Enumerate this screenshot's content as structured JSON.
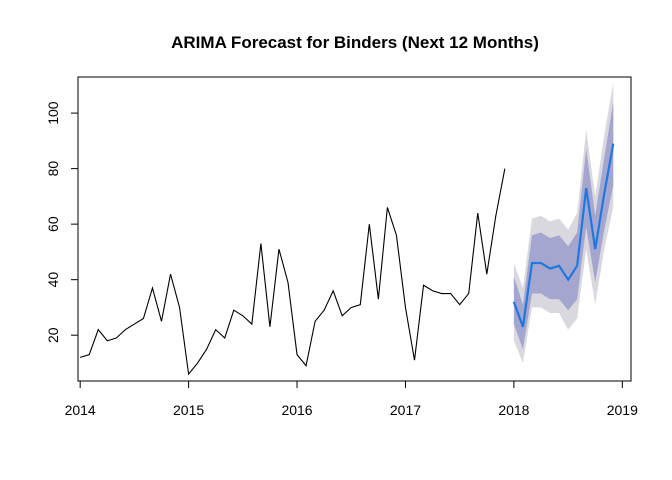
{
  "chart_data": {
    "type": "line",
    "title": "ARIMA Forecast for Binders (Next 12 Months)",
    "xlabel": "",
    "ylabel": "",
    "xlim": [
      2013.98,
      2019.08
    ],
    "ylim": [
      3.5,
      113
    ],
    "x_ticks": [
      2014,
      2015,
      2016,
      2017,
      2018,
      2019
    ],
    "x_tick_labels": [
      "2014",
      "2015",
      "2016",
      "2017",
      "2018",
      "2019"
    ],
    "y_ticks": [
      20,
      40,
      60,
      80,
      100
    ],
    "y_tick_labels": [
      "20",
      "40",
      "60",
      "80",
      "100"
    ],
    "grid": false,
    "legend": "none",
    "colors": {
      "observed": "#000000",
      "forecast": "#1f78e0",
      "band_80": "#a4a6cf",
      "band_95": "#d8d8de"
    },
    "series": [
      {
        "kind": "observed",
        "start": 2014.0,
        "step_months": 1,
        "values": [
          12,
          13,
          22,
          18,
          19,
          22,
          24,
          26,
          37,
          25,
          42,
          30,
          6,
          10,
          15,
          22,
          19,
          29,
          27,
          24,
          53,
          23,
          51,
          39,
          13,
          9,
          25,
          29,
          36,
          27,
          30,
          31,
          60,
          33,
          66,
          56,
          30,
          11,
          38,
          36,
          35,
          35,
          31,
          35,
          64,
          42,
          63,
          80
        ]
      },
      {
        "kind": "forecast",
        "start": 2018.0,
        "step_months": 1,
        "values": [
          32,
          23,
          46,
          46,
          44,
          45,
          40,
          45,
          73,
          51,
          71,
          89
        ],
        "lo80": [
          24,
          15,
          35,
          35,
          33,
          33,
          29,
          33,
          59,
          39,
          58,
          74
        ],
        "hi80": [
          41,
          31,
          56,
          57,
          55,
          56,
          52,
          57,
          87,
          63,
          84,
          104
        ],
        "lo95": [
          18,
          10,
          30,
          30,
          28,
          28,
          22,
          26,
          51,
          31,
          51,
          66
        ],
        "hi95": [
          46,
          37,
          62,
          63,
          61,
          62,
          58,
          64,
          94,
          70,
          92,
          111
        ]
      }
    ]
  }
}
